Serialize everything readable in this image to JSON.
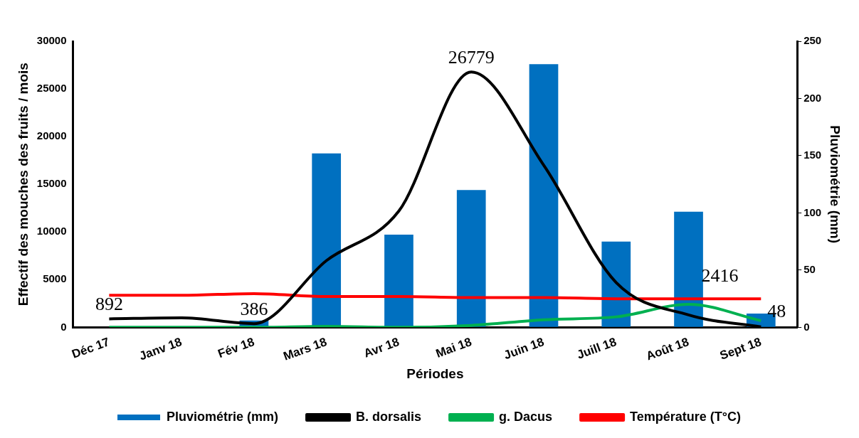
{
  "chart_data": {
    "type": "bar",
    "xlabel": "Périodes",
    "ylabel": "Effectif des mouches des fruits / mois",
    "y2label": "Pluviométrie (mm)",
    "categories": [
      "Déc 17",
      "Janv 18",
      "Fév 18",
      "Mars 18",
      "Avr 18",
      "Mai 18",
      "Juin 18",
      "Juill 18",
      "Août 18",
      "Sept 18"
    ],
    "series": [
      {
        "name": "Pluviométrie (mm)",
        "axis": "y2",
        "color": "#0070c0",
        "values": [
          0,
          0,
          6,
          152,
          81,
          120,
          230,
          75,
          101,
          12
        ]
      },
      {
        "name": "B. dorsalis",
        "type": "line",
        "color": "#000000",
        "values": [
          892,
          1000,
          386,
          7000,
          12200,
          26779,
          17000,
          4700,
          1300,
          48
        ],
        "value_labels": [
          "892",
          null,
          "386",
          null,
          null,
          "26779",
          null,
          null,
          null,
          "48"
        ]
      },
      {
        "name": "g. Dacus",
        "type": "line",
        "color": "#00b050",
        "values": [
          0,
          0,
          0,
          100,
          0,
          200,
          800,
          1100,
          2416,
          700
        ],
        "value_labels": [
          null,
          null,
          null,
          null,
          null,
          null,
          null,
          null,
          "2416",
          null
        ]
      },
      {
        "name": "Température (T°C)",
        "type": "line",
        "axis": "y2",
        "color": "#ff0000",
        "values": [
          28,
          28,
          29.5,
          27,
          27,
          26,
          26,
          25,
          25,
          25
        ]
      }
    ],
    "ylim": [
      0,
      30000
    ],
    "yticks": [
      0,
      5000,
      10000,
      15000,
      20000,
      25000,
      30000
    ],
    "y2lim": [
      0,
      250
    ],
    "y2ticks": [
      0,
      50,
      100,
      150,
      200,
      250
    ],
    "grid": false,
    "legend": "bottom",
    "marker": "none"
  }
}
